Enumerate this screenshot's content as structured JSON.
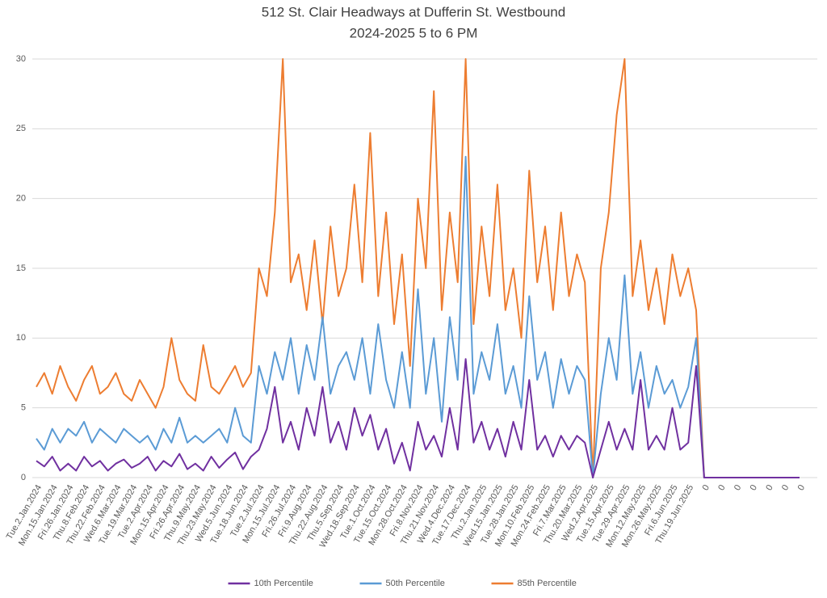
{
  "chart_data": {
    "type": "line",
    "title": "512 St. Clair Headways at Dufferin St. Westbound",
    "subtitle": "2024-2025 5 to 6 PM",
    "categories": [
      "Tue.2.Jan.2024",
      null,
      "Mon.15.Jan.2024",
      null,
      "Fri.26.Jan.2024",
      null,
      "Thu.8.Feb.2024",
      null,
      "Thu.22.Feb.2024",
      null,
      "Wed.6.Mar.2024",
      null,
      "Tue.19.Mar.2024",
      null,
      "Tue.2.Apr.2024",
      null,
      "Mon.15.Apr.2024",
      null,
      "Fri.26.Apr.2024",
      null,
      "Thu.9.May.2024",
      null,
      "Thu.23.May.2024",
      null,
      "Wed.5.Jun.2024",
      null,
      "Tue.18.Jun.2024",
      null,
      "Tue.2.Jul.2024",
      null,
      "Mon.15.Jul.2024",
      null,
      "Fri.26.Jul.2024",
      null,
      "Fri.9.Aug.2024",
      null,
      "Thu.22.Aug.2024",
      null,
      "Thu.5.Sep.2024",
      null,
      "Wed.18.Sep.2024",
      null,
      "Tue.1.Oct.2024",
      null,
      "Tue.15.Oct.2024",
      null,
      "Mon.28.Oct.2024",
      null,
      "Fri.8.Nov.2024",
      null,
      "Thu.21.Nov.2024",
      null,
      "Wed.4.Dec.2024",
      null,
      "Tue.17.Dec.2024",
      null,
      "Thu.2.Jan.2025",
      null,
      "Wed.15.Jan.2025",
      null,
      "Tue.28.Jan.2025",
      null,
      "Mon.10.Feb.2025",
      null,
      "Mon.24.Feb.2025",
      null,
      "Fri.7.Mar.2025",
      null,
      "Thu.20.Mar.2025",
      null,
      "Wed.2.Apr.2025",
      null,
      "Tue.15.Apr.2025",
      null,
      "Tue.29.Apr.2025",
      null,
      "Mon.12.May.2025",
      null,
      "Mon.26.May.2025",
      null,
      "Fri.6.Jun.2025",
      null,
      "Thu.19.Jun.2025",
      null,
      "0",
      null,
      "0",
      null,
      "0",
      null,
      "0",
      null,
      "0",
      null,
      "0",
      null,
      "0"
    ],
    "series": [
      {
        "name": "10th Percentile",
        "color": "#7030a0",
        "values": [
          1.2,
          0.8,
          1.5,
          0.5,
          1,
          0.5,
          1.5,
          0.8,
          1.2,
          0.5,
          1,
          1.3,
          0.7,
          1,
          1.5,
          0.5,
          1.2,
          0.8,
          1.7,
          0.6,
          1,
          0.5,
          1.5,
          0.7,
          1.3,
          1.8,
          0.6,
          1.5,
          2,
          3.5,
          6.5,
          2.5,
          4,
          2,
          5,
          3,
          6.5,
          2.5,
          4,
          2,
          5,
          3,
          4.5,
          2,
          3.5,
          1,
          2.5,
          0.5,
          4,
          2,
          3,
          1.5,
          5,
          2,
          8.5,
          2.5,
          4,
          2,
          3.5,
          1.5,
          4,
          2,
          7,
          2,
          3,
          1.5,
          3,
          2,
          3,
          2.5,
          0,
          2,
          4,
          2,
          3.5,
          2,
          7,
          2,
          3,
          2,
          5,
          2,
          2.5,
          8,
          0,
          0,
          0,
          0,
          0,
          0,
          0,
          0,
          0,
          0,
          0,
          0,
          0
        ]
      },
      {
        "name": "50th Percentile",
        "color": "#5b9bd5",
        "values": [
          2.8,
          2,
          3.5,
          2.5,
          3.5,
          3,
          4,
          2.5,
          3.5,
          3,
          2.5,
          3.5,
          3,
          2.5,
          3,
          2,
          3.5,
          2.5,
          4.3,
          2.5,
          3,
          2.5,
          3,
          3.5,
          2.5,
          5,
          3,
          2.5,
          8,
          6,
          9,
          7,
          10,
          6,
          9.5,
          7,
          11.5,
          6,
          8,
          9,
          7,
          10,
          6,
          11,
          7,
          5,
          9,
          5,
          13.5,
          6,
          10,
          4,
          11.5,
          7,
          23,
          6,
          9,
          7,
          11,
          6,
          8,
          5,
          13,
          7,
          9,
          5,
          8.5,
          6,
          8,
          7,
          0,
          6,
          10,
          7,
          14.5,
          6,
          9,
          5,
          8,
          6,
          7,
          5,
          6.5,
          10,
          0,
          0,
          0,
          0,
          0,
          0,
          0,
          0,
          0,
          0,
          0,
          0,
          0
        ]
      },
      {
        "name": "85th Percentile",
        "color": "#ed7d31",
        "values": [
          6.5,
          7.5,
          6,
          8,
          6.5,
          5.5,
          7,
          8,
          6,
          6.5,
          7.5,
          6,
          5.5,
          7,
          6,
          5,
          6.5,
          10,
          7,
          6,
          5.5,
          9.5,
          6.5,
          6,
          7,
          8,
          6.5,
          7.5,
          15,
          13,
          19,
          30,
          14,
          16,
          12,
          17,
          11,
          18,
          13,
          15,
          21,
          14,
          24.7,
          13,
          19,
          11,
          16,
          8,
          20,
          15,
          27.7,
          12,
          19,
          14,
          30,
          11,
          18,
          13,
          21,
          12,
          15,
          10,
          22,
          14,
          18,
          12,
          19,
          13,
          16,
          14,
          0,
          15,
          19,
          26,
          30,
          13,
          17,
          12,
          15,
          11,
          16,
          13,
          15,
          12,
          0,
          0,
          0,
          0,
          0,
          0,
          0,
          0,
          0,
          0,
          0,
          0,
          0
        ]
      }
    ],
    "ylim": [
      0,
      30
    ],
    "yticks": [
      0,
      5,
      10,
      15,
      20,
      25,
      30
    ],
    "grid": true,
    "legend": "bottom"
  }
}
